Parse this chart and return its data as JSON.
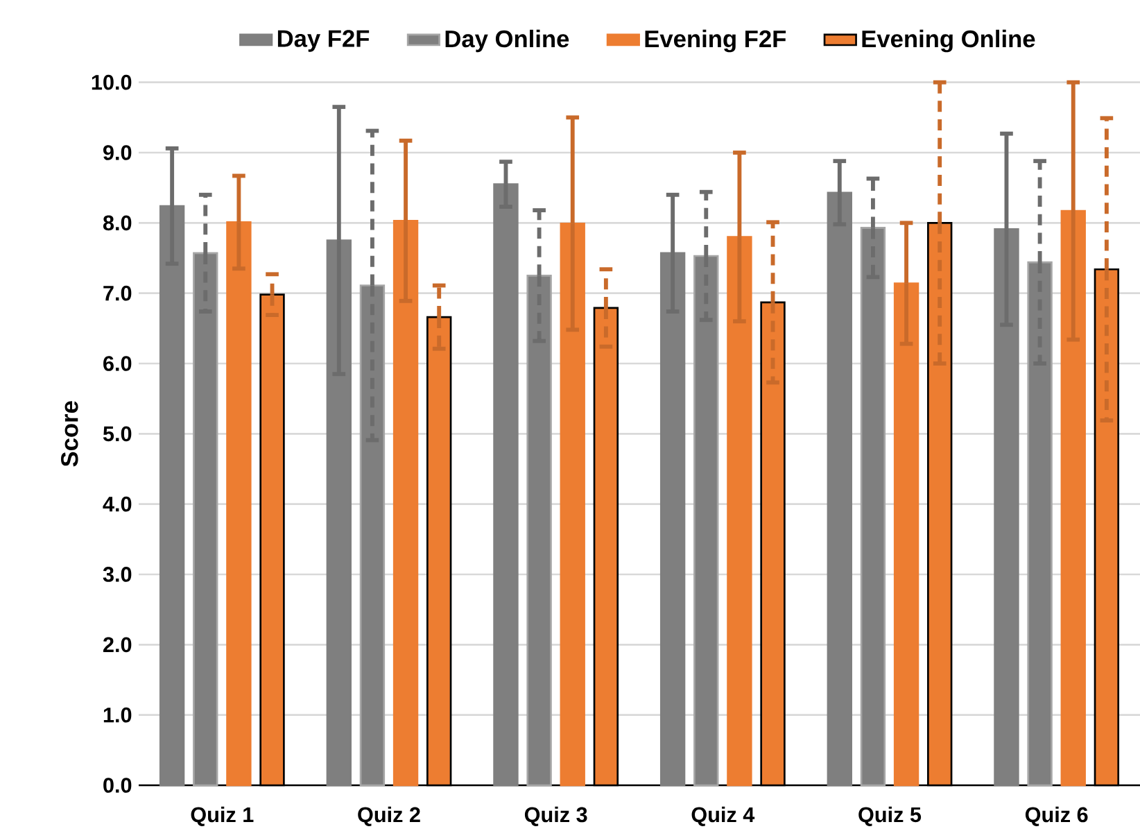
{
  "chart_data": {
    "type": "bar",
    "ylabel": "Score",
    "categories": [
      "Quiz 1",
      "Quiz 2",
      "Quiz 3",
      "Quiz 4",
      "Quiz 5",
      "Quiz 6"
    ],
    "series": [
      {
        "name": "Day F2F",
        "color": "#7f7f7f",
        "values": [
          8.24,
          7.75,
          8.55,
          7.57,
          8.43,
          7.91
        ],
        "errors": [
          0.82,
          1.9,
          0.32,
          0.83,
          0.45,
          1.36
        ],
        "line_style": "solid"
      },
      {
        "name": "Day Online",
        "color": "#7f7f7f",
        "values": [
          7.57,
          7.11,
          7.25,
          7.53,
          7.93,
          7.44
        ],
        "errors": [
          0.83,
          2.2,
          0.93,
          0.91,
          0.7,
          1.44
        ],
        "line_style": "dashed"
      },
      {
        "name": "Evening F2F",
        "color": "#ed7d31",
        "values": [
          8.01,
          8.03,
          7.99,
          7.8,
          7.14,
          8.17
        ],
        "errors": [
          0.66,
          1.14,
          1.51,
          1.2,
          0.86,
          1.83
        ],
        "line_style": "solid"
      },
      {
        "name": "Evening Online",
        "color": "#ed7d31",
        "values": [
          6.98,
          6.66,
          6.79,
          6.87,
          8.0,
          7.34
        ],
        "errors": [
          0.29,
          0.45,
          0.55,
          1.14,
          2.0,
          2.15
        ],
        "line_style": "dashed"
      }
    ],
    "ylim": [
      0,
      10
    ],
    "yticks": [
      {
        "value": 0,
        "label": "0.0"
      },
      {
        "value": 1,
        "label": "1.0"
      },
      {
        "value": 2,
        "label": "2.0"
      },
      {
        "value": 3,
        "label": "3.0"
      },
      {
        "value": 4,
        "label": "4.0"
      },
      {
        "value": 5,
        "label": "5.0"
      },
      {
        "value": 6,
        "label": "6.0"
      },
      {
        "value": 7,
        "label": "7.0"
      },
      {
        "value": 8,
        "label": "8.0"
      },
      {
        "value": 9,
        "label": "9.0"
      },
      {
        "value": 10,
        "label": "10.0"
      }
    ],
    "grid": "y",
    "legend": "top"
  }
}
